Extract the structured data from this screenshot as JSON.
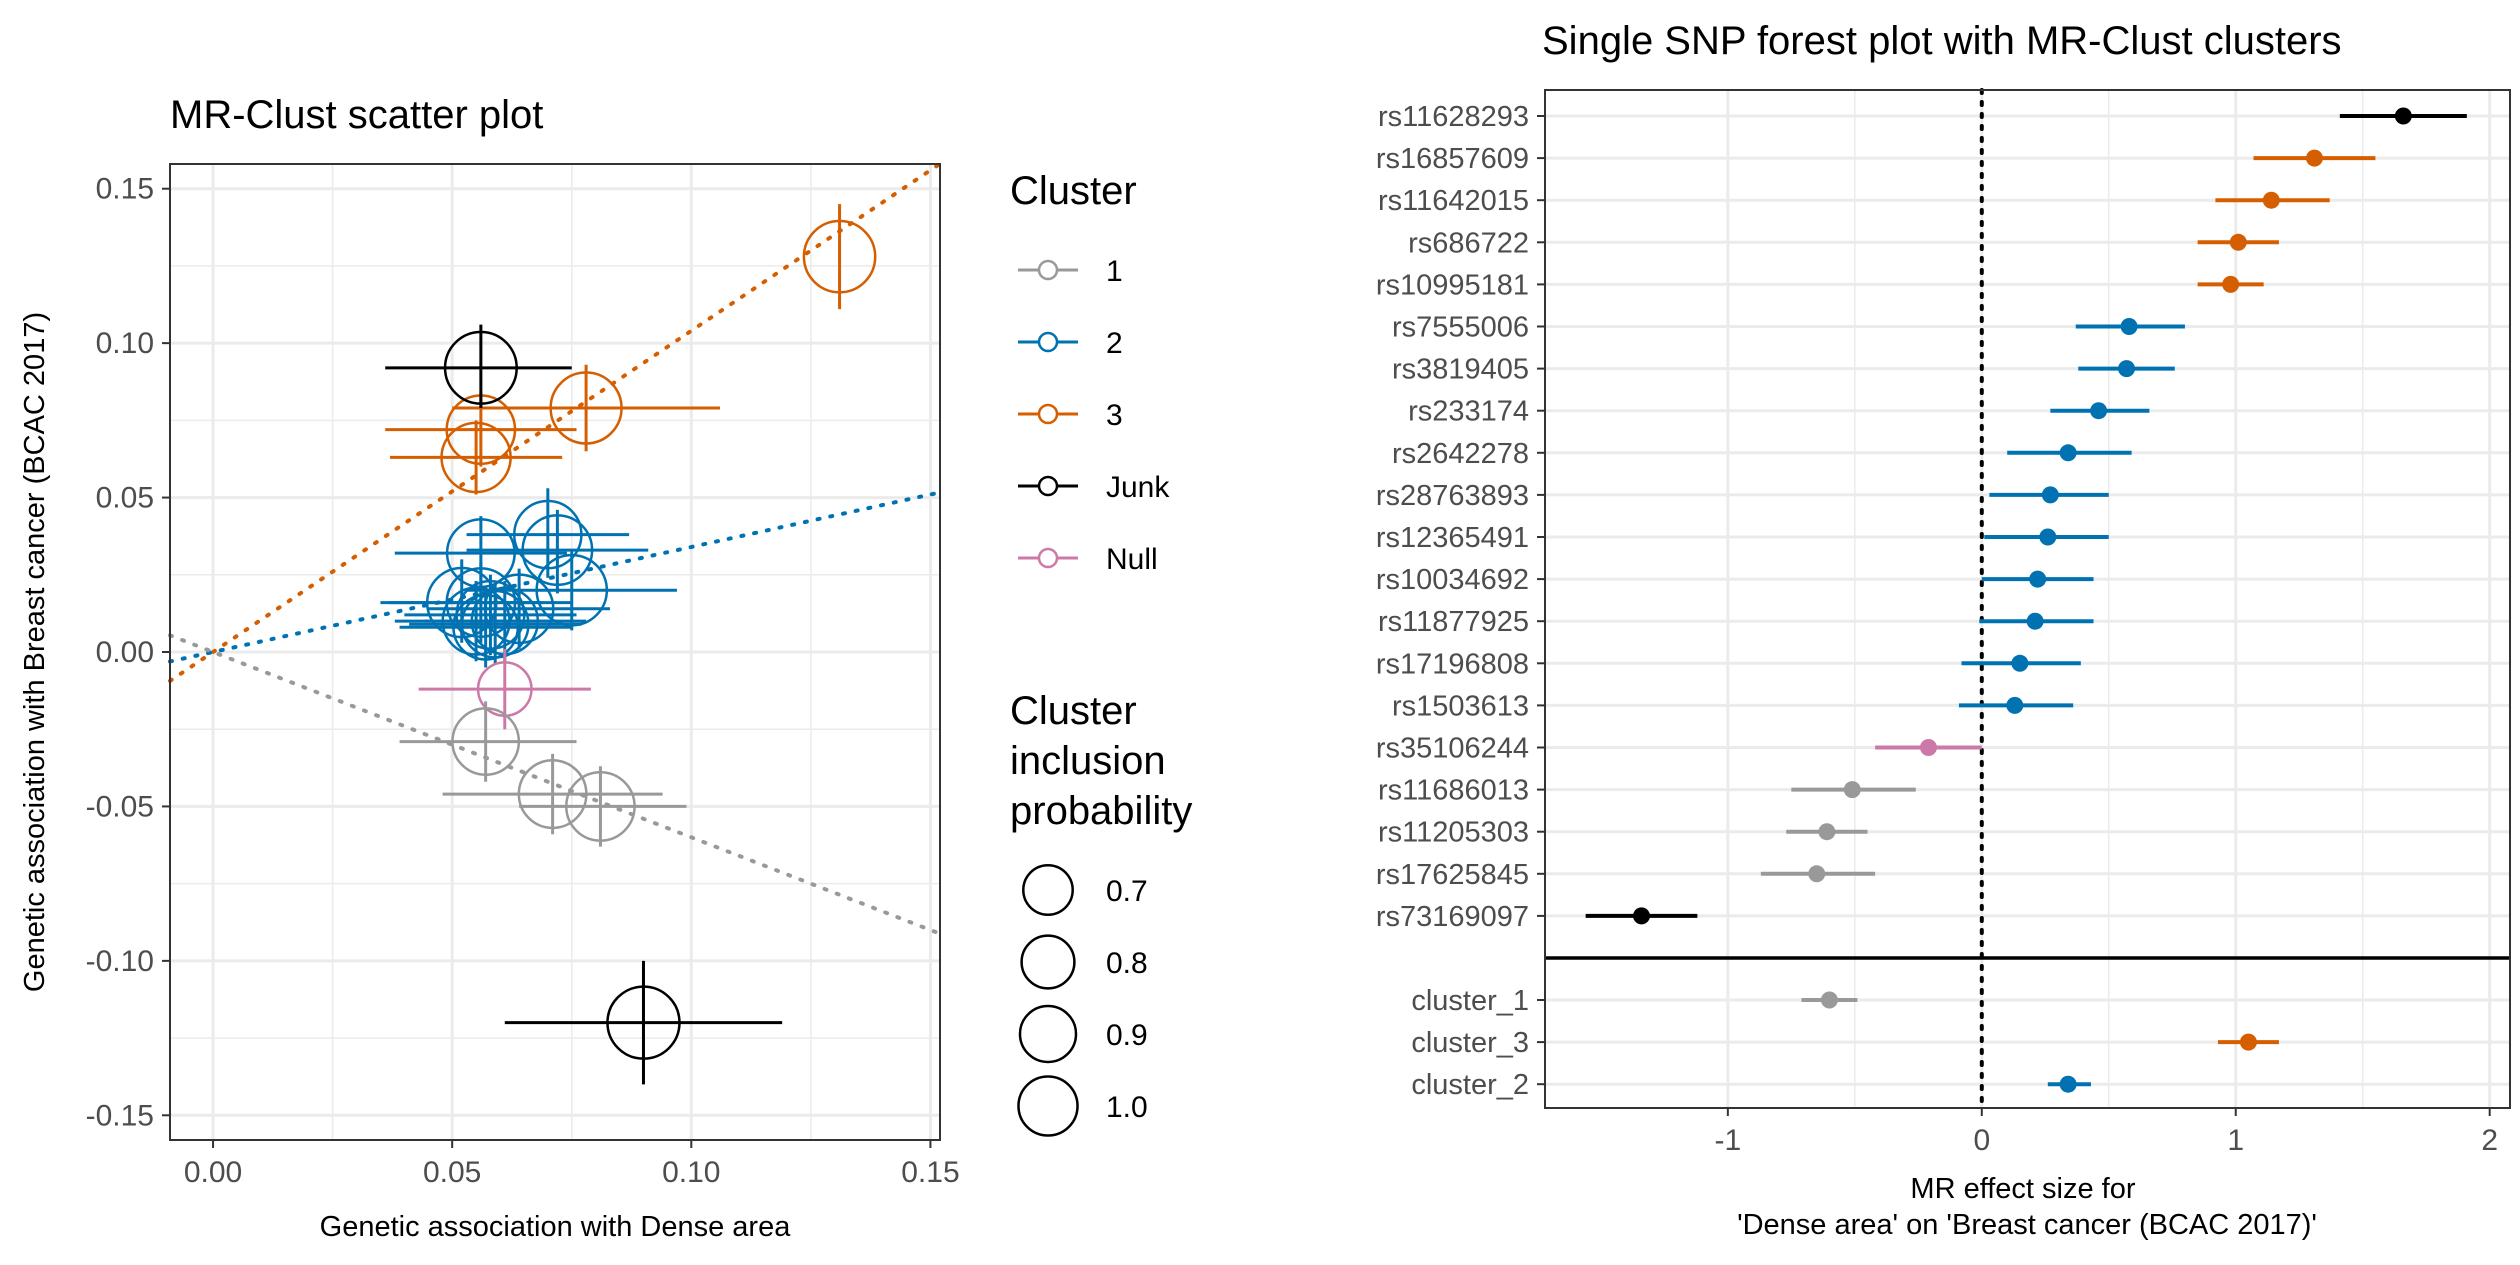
{
  "colors": {
    "cluster_1": "#999999",
    "cluster_2": "#0072B2",
    "cluster_3": "#D55E00",
    "junk": "#000000",
    "null": "#CC79A7",
    "grid": "#EBEBEB",
    "axis_text": "#4D4D4D"
  },
  "chart_data": [
    {
      "type": "scatter",
      "title": "MR-Clust scatter plot",
      "xlabel": "Genetic association with Dense area",
      "ylabel": "Genetic association with Breast cancer (BCAC 2017)",
      "xlim": [
        -0.009,
        0.152
      ],
      "ylim": [
        -0.158,
        0.158
      ],
      "x_ticks": [
        0.0,
        0.05,
        0.1,
        0.15
      ],
      "x_tick_labels": [
        "0.00",
        "0.05",
        "0.10",
        "0.15"
      ],
      "y_ticks": [
        -0.15,
        -0.1,
        -0.05,
        0.0,
        0.05,
        0.1,
        0.15
      ],
      "y_tick_labels": [
        "-0.15",
        "-0.10",
        "-0.05",
        "0.00",
        "0.05",
        "0.10",
        "0.15"
      ],
      "grid": true,
      "legend": {
        "placement": "right",
        "color_title": "Cluster",
        "color_entries": [
          {
            "label": "1",
            "color": "#999999"
          },
          {
            "label": "2",
            "color": "#0072B2"
          },
          {
            "label": "3",
            "color": "#D55E00"
          },
          {
            "label": "Junk",
            "color": "#000000"
          },
          {
            "label": "Null",
            "color": "#CC79A7"
          }
        ],
        "size_title": [
          "Cluster",
          "inclusion",
          "probability"
        ],
        "size_entries": [
          {
            "label": "0.7",
            "value": 0.7
          },
          {
            "label": "0.8",
            "value": 0.8
          },
          {
            "label": "0.9",
            "value": 0.9
          },
          {
            "label": "1.0",
            "value": 1.0
          }
        ]
      },
      "cluster_lines": [
        {
          "cluster": "3",
          "slope": 1.04,
          "color": "#D55E00"
        },
        {
          "cluster": "2",
          "slope": 0.34,
          "color": "#0072B2"
        },
        {
          "cluster": "1",
          "slope": -0.6,
          "color": "#999999"
        }
      ],
      "points": [
        {
          "cluster": "3",
          "x": 0.131,
          "y": 0.128,
          "x_lo": 0.131,
          "x_hi": 0.131,
          "y_lo": 0.111,
          "y_hi": 0.145,
          "prob": 0.98
        },
        {
          "cluster": "3",
          "x": 0.078,
          "y": 0.079,
          "x_lo": 0.05,
          "x_hi": 0.106,
          "y_lo": 0.065,
          "y_hi": 0.093,
          "prob": 0.97
        },
        {
          "cluster": "3",
          "x": 0.056,
          "y": 0.072,
          "x_lo": 0.036,
          "x_hi": 0.076,
          "y_lo": 0.06,
          "y_hi": 0.084,
          "prob": 0.9
        },
        {
          "cluster": "3",
          "x": 0.055,
          "y": 0.063,
          "x_lo": 0.037,
          "x_hi": 0.073,
          "y_lo": 0.051,
          "y_hi": 0.075,
          "prob": 0.92
        },
        {
          "cluster": "Junk",
          "x": 0.056,
          "y": 0.092,
          "x_lo": 0.036,
          "x_hi": 0.075,
          "y_lo": 0.079,
          "y_hi": 0.106,
          "prob": 0.99
        },
        {
          "cluster": "Junk",
          "x": 0.09,
          "y": -0.12,
          "x_lo": 0.061,
          "x_hi": 0.119,
          "y_lo": -0.14,
          "y_hi": -0.1,
          "prob": 1.0
        },
        {
          "cluster": "2",
          "x": 0.07,
          "y": 0.038,
          "x_lo": 0.053,
          "x_hi": 0.087,
          "y_lo": 0.024,
          "y_hi": 0.053,
          "prob": 0.87
        },
        {
          "cluster": "2",
          "x": 0.072,
          "y": 0.033,
          "x_lo": 0.053,
          "x_hi": 0.091,
          "y_lo": 0.019,
          "y_hi": 0.046,
          "prob": 0.93
        },
        {
          "cluster": "2",
          "x": 0.056,
          "y": 0.032,
          "x_lo": 0.038,
          "x_hi": 0.074,
          "y_lo": 0.019,
          "y_hi": 0.044,
          "prob": 0.88
        },
        {
          "cluster": "2",
          "x": 0.075,
          "y": 0.02,
          "x_lo": 0.053,
          "x_hi": 0.097,
          "y_lo": 0.007,
          "y_hi": 0.033,
          "prob": 0.95
        },
        {
          "cluster": "2",
          "x": 0.052,
          "y": 0.016,
          "x_lo": 0.035,
          "x_hi": 0.069,
          "y_lo": 0.003,
          "y_hi": 0.03,
          "prob": 0.92
        },
        {
          "cluster": "2",
          "x": 0.056,
          "y": 0.016,
          "x_lo": 0.037,
          "x_hi": 0.075,
          "y_lo": 0.003,
          "y_hi": 0.029,
          "prob": 0.9
        },
        {
          "cluster": "2",
          "x": 0.064,
          "y": 0.014,
          "x_lo": 0.045,
          "x_hi": 0.083,
          "y_lo": 0.001,
          "y_hi": 0.027,
          "prob": 0.9
        },
        {
          "cluster": "2",
          "x": 0.058,
          "y": 0.012,
          "x_lo": 0.04,
          "x_hi": 0.076,
          "y_lo": -0.001,
          "y_hi": 0.025,
          "prob": 0.88
        },
        {
          "cluster": "2",
          "x": 0.055,
          "y": 0.01,
          "x_lo": 0.038,
          "x_hi": 0.072,
          "y_lo": -0.003,
          "y_hi": 0.023,
          "prob": 0.86
        },
        {
          "cluster": "2",
          "x": 0.059,
          "y": 0.009,
          "x_lo": 0.041,
          "x_hi": 0.077,
          "y_lo": -0.004,
          "y_hi": 0.022,
          "prob": 0.85
        },
        {
          "cluster": "2",
          "x": 0.061,
          "y": 0.01,
          "x_lo": 0.044,
          "x_hi": 0.078,
          "y_lo": -0.003,
          "y_hi": 0.023,
          "prob": 0.84
        },
        {
          "cluster": "2",
          "x": 0.057,
          "y": 0.008,
          "x_lo": 0.039,
          "x_hi": 0.075,
          "y_lo": -0.005,
          "y_hi": 0.021,
          "prob": 0.8
        },
        {
          "cluster": "Null",
          "x": 0.061,
          "y": -0.012,
          "x_lo": 0.043,
          "x_hi": 0.079,
          "y_lo": -0.025,
          "y_hi": 0.001,
          "prob": 0.55
        },
        {
          "cluster": "1",
          "x": 0.057,
          "y": -0.029,
          "x_lo": 0.039,
          "x_hi": 0.076,
          "y_lo": -0.042,
          "y_hi": -0.016,
          "prob": 0.85
        },
        {
          "cluster": "1",
          "x": 0.071,
          "y": -0.046,
          "x_lo": 0.048,
          "x_hi": 0.094,
          "y_lo": -0.059,
          "y_hi": -0.033,
          "prob": 0.88
        },
        {
          "cluster": "1",
          "x": 0.081,
          "y": -0.05,
          "x_lo": 0.064,
          "x_hi": 0.099,
          "y_lo": -0.063,
          "y_hi": -0.037,
          "prob": 0.9
        }
      ]
    },
    {
      "type": "forest",
      "title": "Single SNP forest plot with MR-Clust clusters",
      "xlabel": [
        "MR effect size for",
        "'Dense area' on 'Breast cancer  (BCAC 2017)'"
      ],
      "xlim": [
        -1.72,
        2.08
      ],
      "x_ticks": [
        -1,
        0,
        1,
        2
      ],
      "x_tick_labels": [
        "-1",
        "0",
        "1",
        "2"
      ],
      "reference_line": 0,
      "grid": true,
      "snps": [
        {
          "label": "rs11628293",
          "cluster": "Junk",
          "est": 1.66,
          "lo": 1.41,
          "hi": 1.91
        },
        {
          "label": "rs16857609",
          "cluster": "3",
          "est": 1.31,
          "lo": 1.07,
          "hi": 1.55
        },
        {
          "label": "rs11642015",
          "cluster": "3",
          "est": 1.14,
          "lo": 0.92,
          "hi": 1.37
        },
        {
          "label": "rs686722",
          "cluster": "3",
          "est": 1.01,
          "lo": 0.85,
          "hi": 1.17
        },
        {
          "label": "rs10995181",
          "cluster": "3",
          "est": 0.98,
          "lo": 0.85,
          "hi": 1.11
        },
        {
          "label": "rs7555006",
          "cluster": "2",
          "est": 0.58,
          "lo": 0.37,
          "hi": 0.8
        },
        {
          "label": "rs3819405",
          "cluster": "2",
          "est": 0.57,
          "lo": 0.38,
          "hi": 0.76
        },
        {
          "label": "rs233174",
          "cluster": "2",
          "est": 0.46,
          "lo": 0.27,
          "hi": 0.66
        },
        {
          "label": "rs2642278",
          "cluster": "2",
          "est": 0.34,
          "lo": 0.1,
          "hi": 0.59
        },
        {
          "label": "rs28763893",
          "cluster": "2",
          "est": 0.27,
          "lo": 0.03,
          "hi": 0.5
        },
        {
          "label": "rs12365491",
          "cluster": "2",
          "est": 0.26,
          "lo": 0.01,
          "hi": 0.5
        },
        {
          "label": "rs10034692",
          "cluster": "2",
          "est": 0.22,
          "lo": 0.0,
          "hi": 0.44
        },
        {
          "label": "rs11877925",
          "cluster": "2",
          "est": 0.21,
          "lo": -0.01,
          "hi": 0.44
        },
        {
          "label": "rs17196808",
          "cluster": "2",
          "est": 0.15,
          "lo": -0.08,
          "hi": 0.39
        },
        {
          "label": "rs1503613",
          "cluster": "2",
          "est": 0.13,
          "lo": -0.09,
          "hi": 0.36
        },
        {
          "label": "rs35106244",
          "cluster": "Null",
          "est": -0.21,
          "lo": -0.42,
          "hi": 0.0
        },
        {
          "label": "rs11686013",
          "cluster": "1",
          "est": -0.51,
          "lo": -0.75,
          "hi": -0.26
        },
        {
          "label": "rs11205303",
          "cluster": "1",
          "est": -0.61,
          "lo": -0.77,
          "hi": -0.45
        },
        {
          "label": "rs17625845",
          "cluster": "1",
          "est": -0.65,
          "lo": -0.87,
          "hi": -0.42
        },
        {
          "label": "rs73169097",
          "cluster": "Junk",
          "est": -1.34,
          "lo": -1.56,
          "hi": -1.12
        }
      ],
      "clusters": [
        {
          "label": "cluster_1",
          "cluster": "1",
          "est": -0.6,
          "lo": -0.71,
          "hi": -0.49
        },
        {
          "label": "cluster_3",
          "cluster": "3",
          "est": 1.05,
          "lo": 0.93,
          "hi": 1.17
        },
        {
          "label": "cluster_2",
          "cluster": "2",
          "est": 0.34,
          "lo": 0.26,
          "hi": 0.43
        }
      ]
    }
  ]
}
